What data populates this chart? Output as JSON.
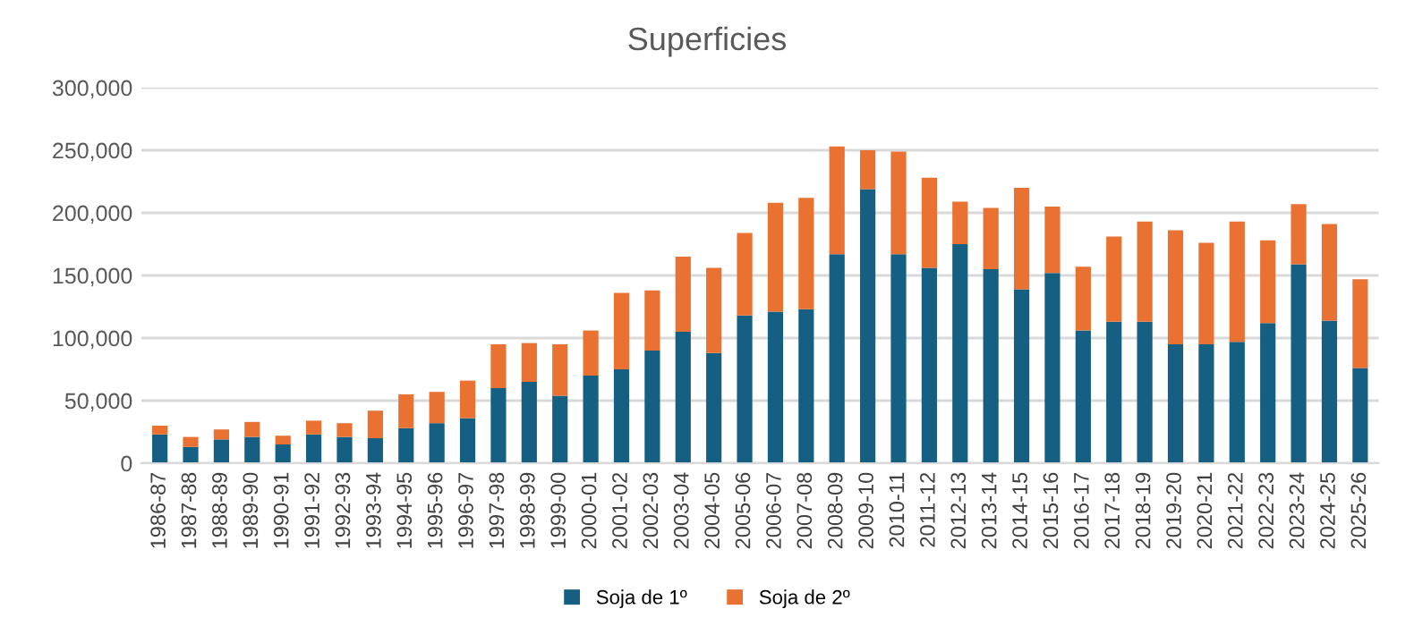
{
  "chart_data": {
    "type": "bar",
    "title": "Superficies",
    "stacked": true,
    "categories": [
      "1986-87",
      "1987-88",
      "1988-89",
      "1989-90",
      "1990-91",
      "1991-92",
      "1992-93",
      "1993-94",
      "1994-95",
      "1995-96",
      "1996-97",
      "1997-98",
      "1998-99",
      "1999-00",
      "2000-01",
      "2001-02",
      "2002-03",
      "2003-04",
      "2004-05",
      "2005-06",
      "2006-07",
      "2007-08",
      "2008-09",
      "2009-10",
      "2010-11",
      "2011-12",
      "2012-13",
      "2013-14",
      "2014-15",
      "2015-16",
      "2016-17",
      "2017-18",
      "2018-19",
      "2019-20",
      "2020-21",
      "2021-22",
      "2022-23",
      "2023-24",
      "2024-25",
      "2025-26"
    ],
    "series": [
      {
        "name": "Soja de 1º",
        "color": "#156082",
        "values": [
          23000,
          13000,
          19000,
          21000,
          15000,
          23000,
          21000,
          20000,
          28000,
          32000,
          36000,
          60000,
          65000,
          54000,
          70000,
          75000,
          90000,
          105000,
          88000,
          118000,
          121000,
          123000,
          167000,
          219000,
          167000,
          156000,
          175000,
          155000,
          139000,
          152000,
          106000,
          113000,
          113000,
          95000,
          95000,
          97000,
          112000,
          159000,
          114000,
          76000
        ]
      },
      {
        "name": "Soja de 2º",
        "color": "#e97132",
        "values": [
          7000,
          8000,
          8000,
          12000,
          7000,
          11000,
          11000,
          22000,
          27000,
          25000,
          30000,
          35000,
          31000,
          41000,
          36000,
          61000,
          48000,
          60000,
          68000,
          66000,
          87000,
          89000,
          86000,
          31000,
          82000,
          72000,
          34000,
          49000,
          81000,
          53000,
          51000,
          68000,
          80000,
          91000,
          81000,
          96000,
          66000,
          48000,
          77000,
          71000
        ]
      }
    ],
    "ylim": [
      0,
      300000
    ],
    "yticks": [
      {
        "value": 0,
        "label": "0"
      },
      {
        "value": 50000,
        "label": "50,000"
      },
      {
        "value": 100000,
        "label": "100,000"
      },
      {
        "value": 150000,
        "label": "150,000"
      },
      {
        "value": 200000,
        "label": "200,000"
      },
      {
        "value": 250000,
        "label": "250,000"
      },
      {
        "value": 300000,
        "label": "300,000"
      }
    ],
    "grid": "y",
    "legend": "bottom"
  }
}
